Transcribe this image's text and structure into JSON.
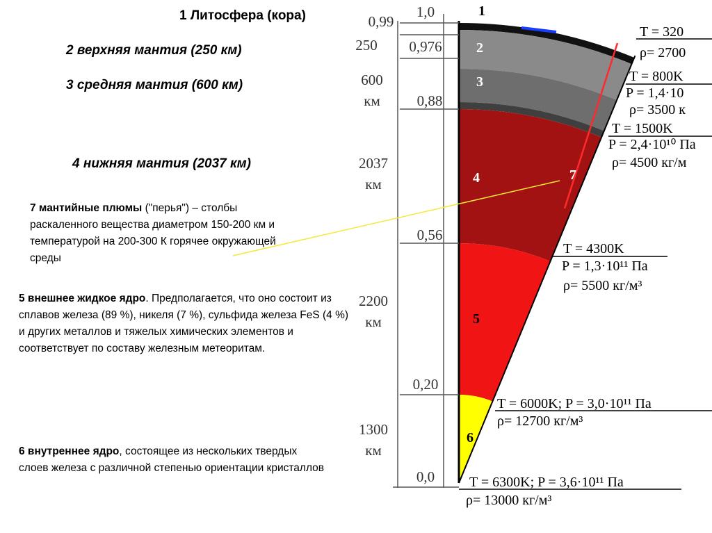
{
  "headings": [
    "1 Литосфера (кора)",
    "2 верхняя мантия (250 км)",
    "3 средняя мантия (600 км)",
    "4 нижняя мантия (2037 км)"
  ],
  "descriptions": [
    {
      "lead": "7 мантийные плюмы",
      "text": " (\"перья\") – столбы раскаленного вещества диаметром 150-200 км и температурой на 200-300 К горячее окружающей среды"
    },
    {
      "lead": "5 внешнее жидкое ядро",
      "text": ". Предполагается, что оно состоит из сплавов железа (89 %), никеля (7 %), сульфида железа FeS (4 %) и других металлов и тяжелых химических элементов и соответствует по составу железным метеоритам."
    },
    {
      "lead": "6 внутреннее ядро",
      "text": ", состоящее из нескольких твердых слоев железа с различной степенью ориентации кристаллов"
    }
  ],
  "scale": {
    "thickness": [
      {
        "value": "0,99"
      },
      {
        "value": "250"
      },
      {
        "value": "600",
        "unit": "км"
      },
      {
        "value": "2037",
        "unit": "км"
      },
      {
        "value": "2200",
        "unit": "км"
      },
      {
        "value": "1300",
        "unit": "км"
      }
    ],
    "radius_fractions": [
      "1,0",
      "0,976",
      "0,88",
      "0,56",
      "0,20",
      "0,0"
    ]
  },
  "wedge_numbers": [
    "1",
    "2",
    "3",
    "4",
    "5",
    "6",
    "7"
  ],
  "conditions": [
    [
      "T = 320",
      "ρ= 2700"
    ],
    [
      "T = 800K",
      "P = 1,4·10",
      "ρ= 3500 к"
    ],
    [
      "T = 1500K",
      "P = 2,4·10¹⁰ Па",
      "ρ= 4500 кг/м"
    ],
    [
      "T = 4300K",
      "P = 1,3·10¹¹ Па",
      "ρ= 5500 кг/м³"
    ],
    [
      "T = 6000K; P = 3,0·10¹¹ Па",
      "ρ= 12700 кг/м³"
    ],
    [
      "T = 6300K; P = 3,6·10¹¹ Па",
      "ρ= 13000 кг/м³"
    ]
  ]
}
